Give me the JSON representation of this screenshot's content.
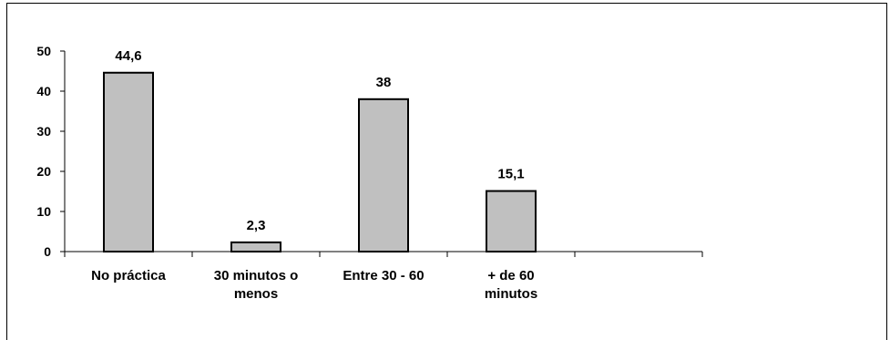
{
  "chart_data": {
    "type": "bar",
    "categories": [
      [
        "No práctica"
      ],
      [
        "30 minutos o",
        "menos"
      ],
      [
        "Entre 30 - 60"
      ],
      [
        "+ de 60",
        "minutos"
      ],
      [
        ""
      ]
    ],
    "values": [
      44.6,
      2.3,
      38,
      15.1,
      null
    ],
    "value_labels": [
      "44,6",
      "2,3",
      "38",
      "15,1",
      ""
    ],
    "ylim": [
      0,
      50
    ],
    "yticks": [
      0,
      10,
      20,
      30,
      40,
      50
    ],
    "title": "",
    "xlabel": "",
    "ylabel": "",
    "grid": false,
    "colors": {
      "bar_fill": "#c0c0c0",
      "bar_stroke": "#000000"
    }
  }
}
